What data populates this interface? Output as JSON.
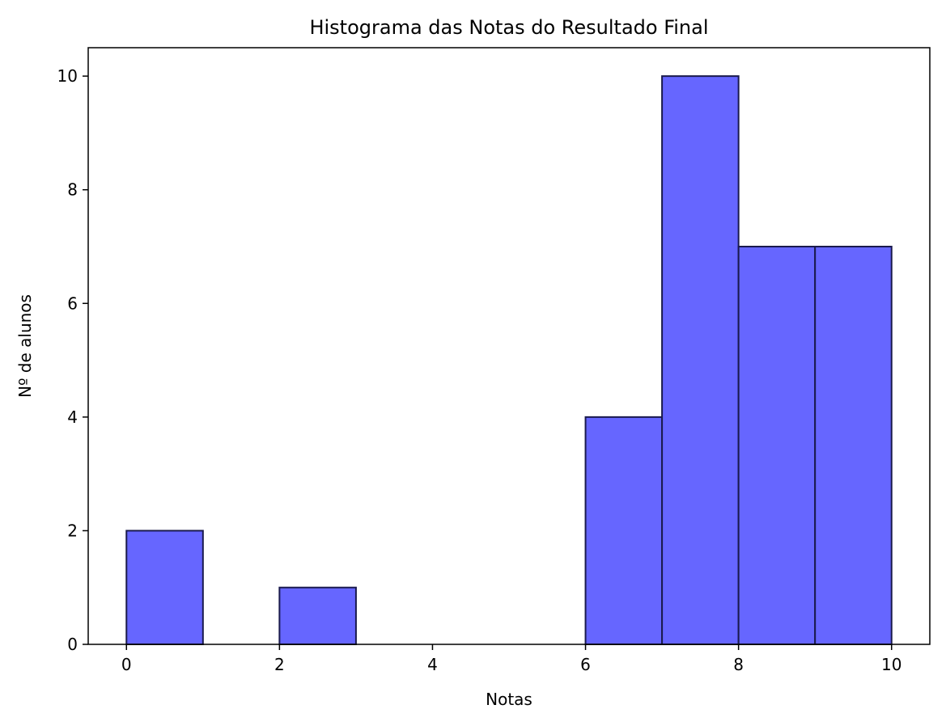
{
  "chart_data": {
    "type": "histogram",
    "title": "Histograma das Notas do Resultado Final",
    "xlabel": "Notas",
    "ylabel": "Nº de alunos",
    "bins": [
      {
        "start": 0,
        "end": 1,
        "count": 2
      },
      {
        "start": 1,
        "end": 2,
        "count": 0
      },
      {
        "start": 2,
        "end": 3,
        "count": 1
      },
      {
        "start": 3,
        "end": 4,
        "count": 0
      },
      {
        "start": 4,
        "end": 5,
        "count": 0
      },
      {
        "start": 5,
        "end": 6,
        "count": 0
      },
      {
        "start": 6,
        "end": 7,
        "count": 4
      },
      {
        "start": 7,
        "end": 8,
        "count": 10
      },
      {
        "start": 8,
        "end": 9,
        "count": 7
      },
      {
        "start": 9,
        "end": 10,
        "count": 7
      }
    ],
    "xlim": [
      -0.5,
      10.5
    ],
    "ylim": [
      0,
      10.5
    ],
    "xticks": [
      0,
      2,
      4,
      6,
      8,
      10
    ],
    "yticks": [
      0,
      2,
      4,
      6,
      8,
      10
    ],
    "bar_color": "#6666ff",
    "edge_color": "#1a1a4d",
    "grid": false,
    "legend": false
  }
}
